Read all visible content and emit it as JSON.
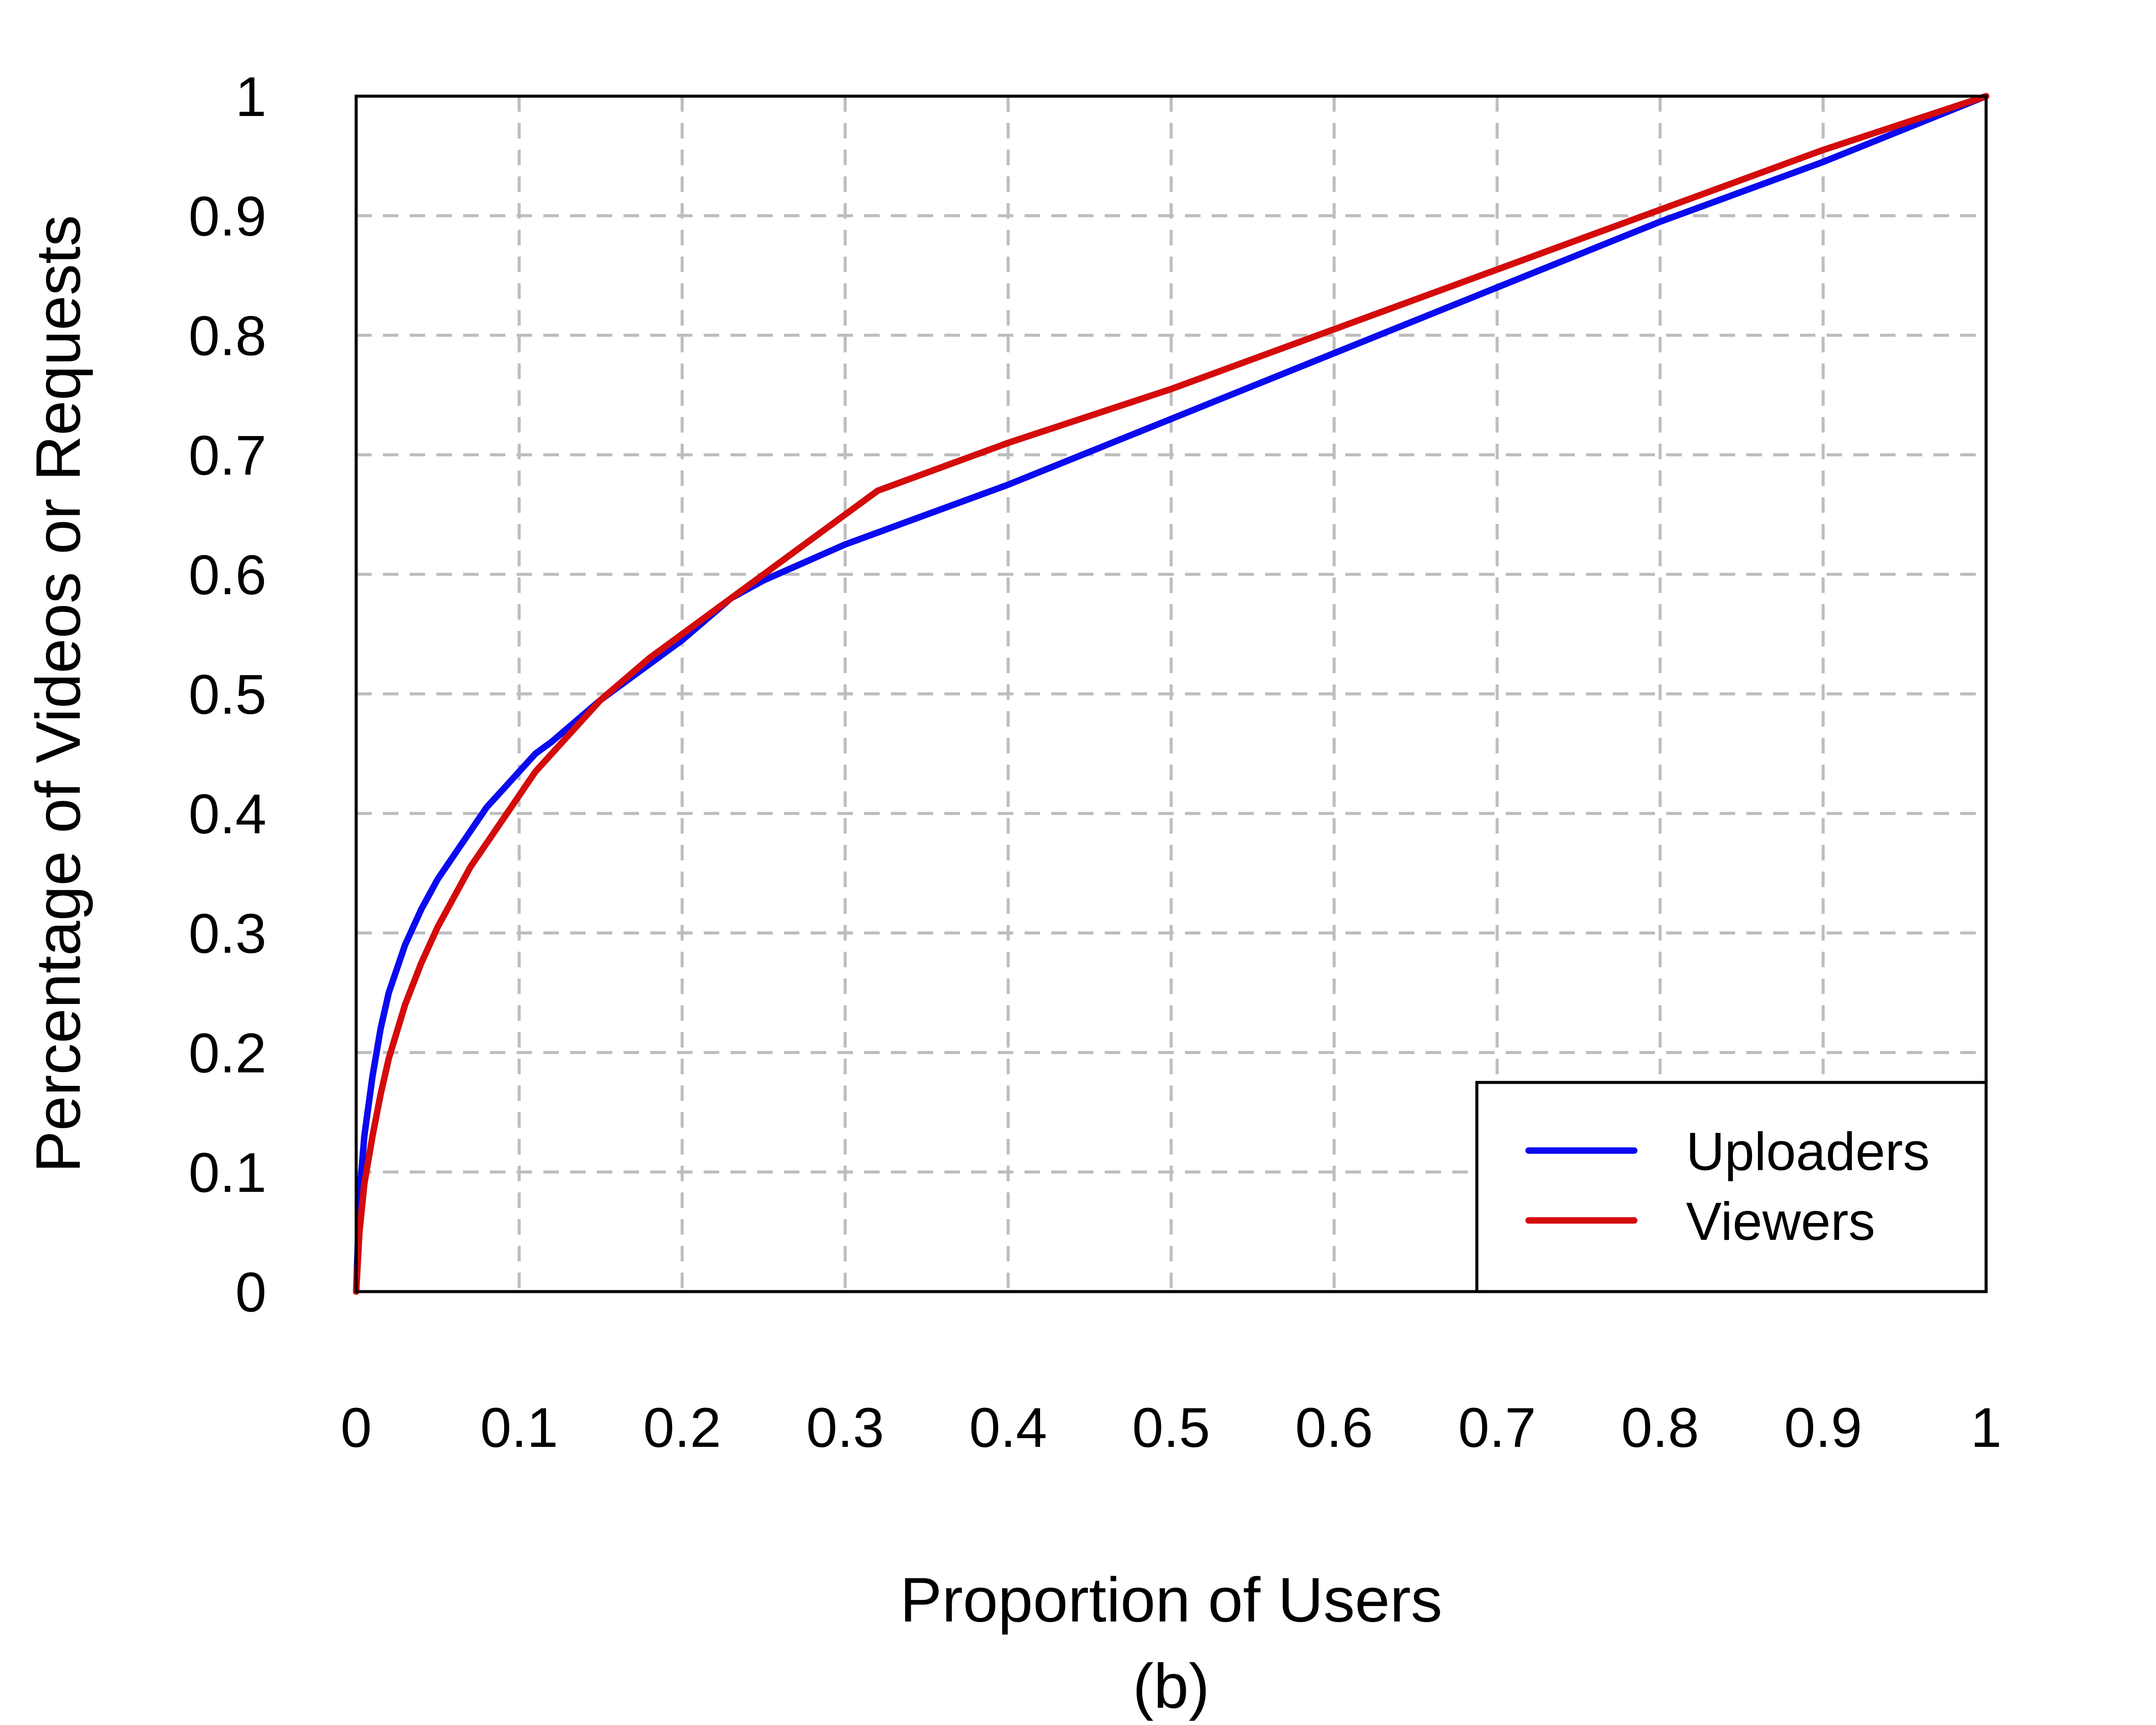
{
  "chart_data": {
    "type": "line",
    "xlabel": "Proportion of Users",
    "ylabel": "Percentage of Videos or Requests",
    "caption": "(b)",
    "xlim": [
      0,
      1
    ],
    "ylim": [
      0,
      1
    ],
    "grid": true,
    "legend_position": "bottom-right",
    "x_ticks": [
      {
        "value": 0,
        "label": "0"
      },
      {
        "value": 0.1,
        "label": "0.1"
      },
      {
        "value": 0.2,
        "label": "0.2"
      },
      {
        "value": 0.3,
        "label": "0.3"
      },
      {
        "value": 0.4,
        "label": "0.4"
      },
      {
        "value": 0.5,
        "label": "0.5"
      },
      {
        "value": 0.6,
        "label": "0.6"
      },
      {
        "value": 0.7,
        "label": "0.7"
      },
      {
        "value": 0.8,
        "label": "0.8"
      },
      {
        "value": 0.9,
        "label": "0.9"
      },
      {
        "value": 1,
        "label": "1"
      }
    ],
    "y_ticks": [
      {
        "value": 0,
        "label": "0"
      },
      {
        "value": 0.1,
        "label": "0.1"
      },
      {
        "value": 0.2,
        "label": "0.2"
      },
      {
        "value": 0.3,
        "label": "0.3"
      },
      {
        "value": 0.4,
        "label": "0.4"
      },
      {
        "value": 0.5,
        "label": "0.5"
      },
      {
        "value": 0.6,
        "label": "0.6"
      },
      {
        "value": 0.7,
        "label": "0.7"
      },
      {
        "value": 0.8,
        "label": "0.8"
      },
      {
        "value": 0.9,
        "label": "0.9"
      },
      {
        "value": 1,
        "label": "1"
      }
    ],
    "series": [
      {
        "name": "Uploaders",
        "color": "#0a0af0",
        "points": [
          [
            0,
            0
          ],
          [
            0.002,
            0.08
          ],
          [
            0.005,
            0.13
          ],
          [
            0.01,
            0.18
          ],
          [
            0.015,
            0.22
          ],
          [
            0.02,
            0.25
          ],
          [
            0.03,
            0.29
          ],
          [
            0.04,
            0.32
          ],
          [
            0.05,
            0.345
          ],
          [
            0.06,
            0.365
          ],
          [
            0.07,
            0.385
          ],
          [
            0.08,
            0.405
          ],
          [
            0.09,
            0.42
          ],
          [
            0.1,
            0.435
          ],
          [
            0.11,
            0.45
          ],
          [
            0.12,
            0.46
          ],
          [
            0.15,
            0.495
          ],
          [
            0.2,
            0.545
          ],
          [
            0.23,
            0.58
          ],
          [
            0.25,
            0.595
          ],
          [
            0.3,
            0.625
          ],
          [
            0.4,
            0.675
          ],
          [
            0.5,
            0.73
          ],
          [
            0.6,
            0.785
          ],
          [
            0.7,
            0.84
          ],
          [
            0.8,
            0.895
          ],
          [
            0.9,
            0.945
          ],
          [
            1,
            1
          ]
        ]
      },
      {
        "name": "Viewers",
        "color": "#d40b0b",
        "points": [
          [
            0,
            0
          ],
          [
            0.002,
            0.05
          ],
          [
            0.005,
            0.09
          ],
          [
            0.01,
            0.13
          ],
          [
            0.015,
            0.165
          ],
          [
            0.02,
            0.195
          ],
          [
            0.03,
            0.24
          ],
          [
            0.04,
            0.275
          ],
          [
            0.05,
            0.305
          ],
          [
            0.06,
            0.33
          ],
          [
            0.07,
            0.355
          ],
          [
            0.08,
            0.375
          ],
          [
            0.09,
            0.395
          ],
          [
            0.1,
            0.415
          ],
          [
            0.11,
            0.435
          ],
          [
            0.12,
            0.45
          ],
          [
            0.15,
            0.495
          ],
          [
            0.18,
            0.53
          ],
          [
            0.2,
            0.55
          ],
          [
            0.23,
            0.58
          ],
          [
            0.25,
            0.6
          ],
          [
            0.28,
            0.63
          ],
          [
            0.32,
            0.67
          ],
          [
            0.4,
            0.71
          ],
          [
            0.5,
            0.755
          ],
          [
            0.6,
            0.805
          ],
          [
            0.7,
            0.855
          ],
          [
            0.8,
            0.905
          ],
          [
            0.9,
            0.955
          ],
          [
            1,
            1
          ]
        ]
      }
    ]
  }
}
